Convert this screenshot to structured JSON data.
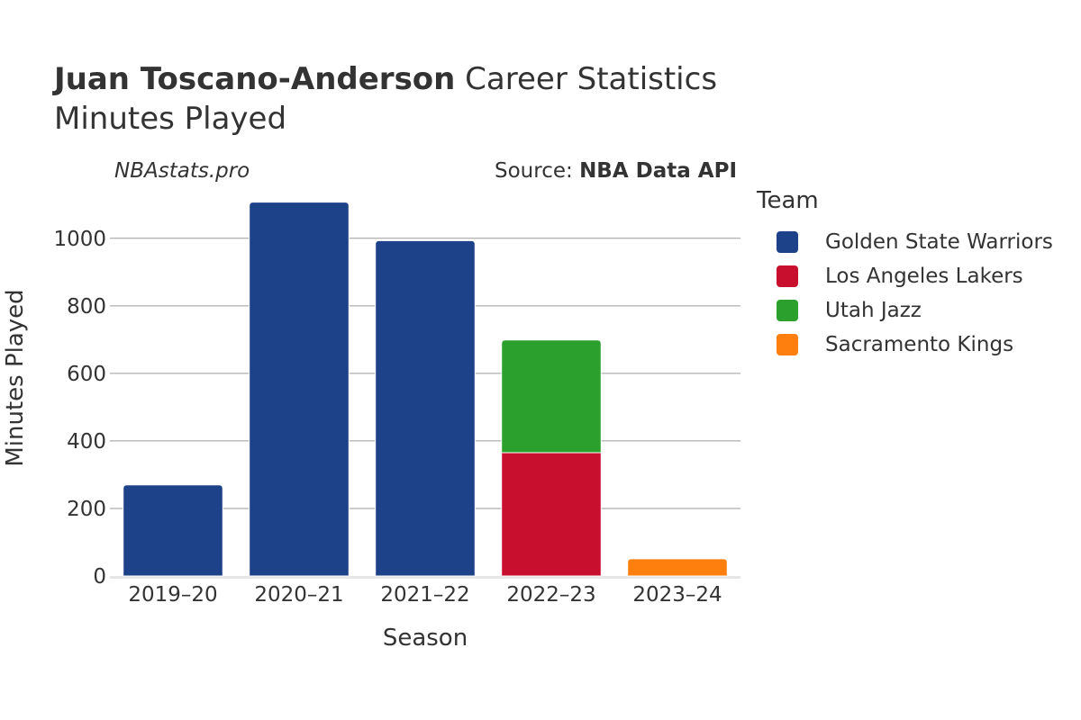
{
  "header": {
    "player": "Juan Toscano-Anderson",
    "title_suffix": " Career Statistics",
    "subtitle": "Minutes Played",
    "watermark": "NBAstats.pro",
    "source_prefix": "Source: ",
    "source_name": "NBA Data API"
  },
  "legend": {
    "title": "Team",
    "items": [
      {
        "label": "Golden State Warriors",
        "color": "#1d428a"
      },
      {
        "label": "Los Angeles Lakers",
        "color": "#c8102e"
      },
      {
        "label": "Utah Jazz",
        "color": "#2ca02c"
      },
      {
        "label": "Sacramento Kings",
        "color": "#ff7f0e"
      }
    ]
  },
  "chart_data": {
    "type": "bar",
    "stacked": true,
    "xlabel": "Season",
    "ylabel": "Minutes Played",
    "ylim": [
      0,
      1130
    ],
    "yticks": [
      0,
      200,
      400,
      600,
      800,
      1000
    ],
    "categories": [
      "2019–20",
      "2020–21",
      "2021–22",
      "2022–23",
      "2023–24"
    ],
    "series": [
      {
        "name": "Golden State Warriors",
        "color": "#1d428a",
        "values": [
          270,
          1107,
          993,
          0,
          0
        ]
      },
      {
        "name": "Los Angeles Lakers",
        "color": "#c8102e",
        "values": [
          0,
          0,
          0,
          365,
          0
        ]
      },
      {
        "name": "Utah Jazz",
        "color": "#2ca02c",
        "values": [
          0,
          0,
          0,
          334,
          0
        ]
      },
      {
        "name": "Sacramento Kings",
        "color": "#ff7f0e",
        "values": [
          0,
          0,
          0,
          0,
          51
        ]
      }
    ],
    "grid": true,
    "legend_position": "right"
  }
}
